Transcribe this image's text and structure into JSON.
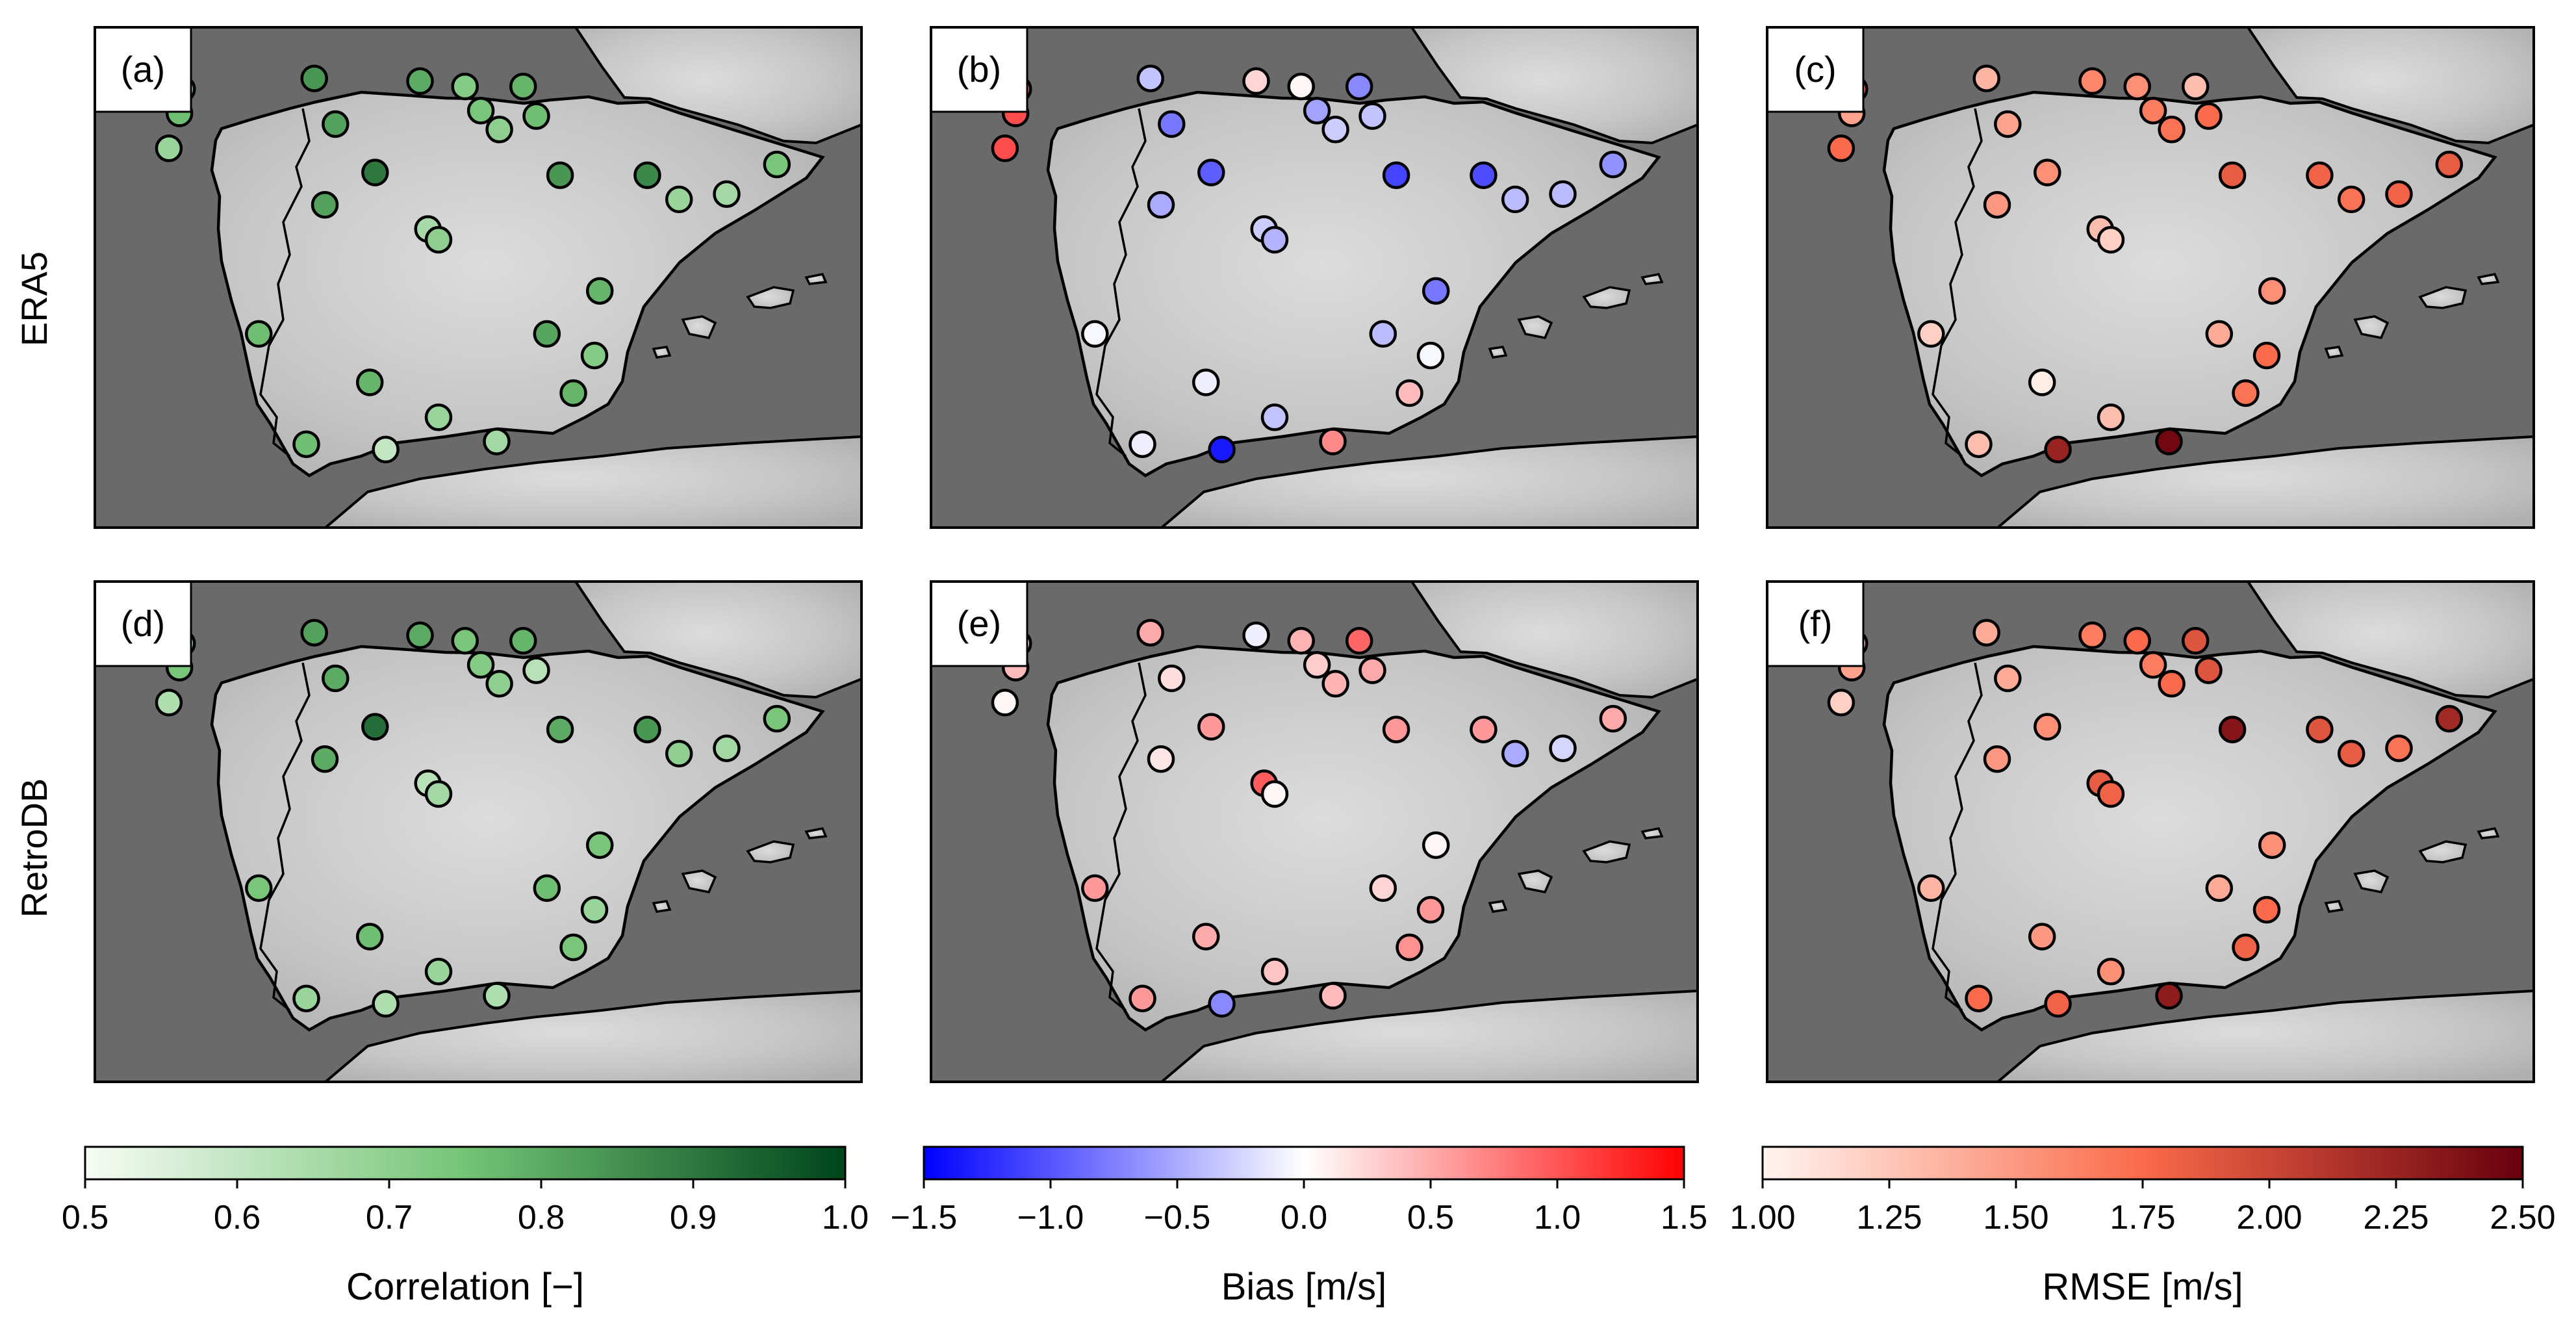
{
  "figure": {
    "row_labels": [
      "ERA5",
      "RetroDB"
    ],
    "panel_labels": [
      "(a)",
      "(b)",
      "(c)",
      "(d)",
      "(e)",
      "(f)"
    ]
  },
  "colors": {
    "sea": "#6a6a6a",
    "land_light": "#d4d4d4",
    "land_dark": "#a8a8a8",
    "coast": "#000000",
    "corr_low": "#f7fcf5",
    "corr_mid": "#74c476",
    "corr_high": "#00441b",
    "bias_low": "#0000ff",
    "bias_mid": "#ffffff",
    "bias_high": "#ff0000",
    "rmse_low": "#fff5f0",
    "rmse_mid": "#fb6a4a",
    "rmse_high": "#67000d"
  },
  "colorbars": [
    {
      "metric": "corr",
      "label": "Correlation [−]",
      "min": 0.5,
      "max": 1.0,
      "ticks": [
        0.5,
        0.6,
        0.7,
        0.8,
        0.9,
        1.0
      ],
      "tick_labels": [
        "0.5",
        "0.6",
        "0.7",
        "0.8",
        "0.9",
        "1.0"
      ]
    },
    {
      "metric": "bias",
      "label": "Bias [m/s]",
      "min": -1.5,
      "max": 1.5,
      "ticks": [
        -1.5,
        -1.0,
        -0.5,
        0.0,
        0.5,
        1.0,
        1.5
      ],
      "tick_labels": [
        "−1.5",
        "−1.0",
        "−0.5",
        "0.0",
        "0.5",
        "1.0",
        "1.5"
      ]
    },
    {
      "metric": "rmse",
      "label": "RMSE [m/s]",
      "min": 1.0,
      "max": 2.5,
      "ticks": [
        1.0,
        1.25,
        1.5,
        1.75,
        2.0,
        2.25,
        2.5
      ],
      "tick_labels": [
        "1.00",
        "1.25",
        "1.50",
        "1.75",
        "2.00",
        "2.25",
        "2.50"
      ]
    }
  ],
  "chart_data": {
    "type": "scatter",
    "title": "",
    "description_axes": "longitude / latitude map of Iberian Peninsula",
    "xlim_lon": [
      -10.0,
      4.5
    ],
    "ylim_lat": [
      35.2,
      44.5
    ],
    "stations": [
      {
        "lon": -8.35,
        "lat": 43.35
      },
      {
        "lon": -8.4,
        "lat": 42.9
      },
      {
        "lon": -8.6,
        "lat": 42.25
      },
      {
        "lon": -5.85,
        "lat": 43.55
      },
      {
        "lon": -3.85,
        "lat": 43.5
      },
      {
        "lon": -3.0,
        "lat": 43.4
      },
      {
        "lon": -1.9,
        "lat": 43.4
      },
      {
        "lon": -2.7,
        "lat": 42.95
      },
      {
        "lon": -2.35,
        "lat": 42.6
      },
      {
        "lon": -1.65,
        "lat": 42.85
      },
      {
        "lon": -5.45,
        "lat": 42.7
      },
      {
        "lon": -4.7,
        "lat": 41.8
      },
      {
        "lon": -5.65,
        "lat": 41.2
      },
      {
        "lon": -3.7,
        "lat": 40.75
      },
      {
        "lon": -3.5,
        "lat": 40.55
      },
      {
        "lon": -1.2,
        "lat": 41.75
      },
      {
        "lon": 0.45,
        "lat": 41.75
      },
      {
        "lon": 1.05,
        "lat": 41.3
      },
      {
        "lon": 1.95,
        "lat": 41.4
      },
      {
        "lon": 2.9,
        "lat": 41.95
      },
      {
        "lon": -0.45,
        "lat": 39.6
      },
      {
        "lon": -1.45,
        "lat": 38.8
      },
      {
        "lon": -0.55,
        "lat": 38.4
      },
      {
        "lon": -0.95,
        "lat": 37.7
      },
      {
        "lon": -6.9,
        "lat": 38.8
      },
      {
        "lon": -4.8,
        "lat": 37.9
      },
      {
        "lon": -3.5,
        "lat": 37.25
      },
      {
        "lon": -2.4,
        "lat": 36.8
      },
      {
        "lon": -6.0,
        "lat": 36.75
      },
      {
        "lon": -4.5,
        "lat": 36.65
      }
    ],
    "series": [
      {
        "name": "(a) ERA5 Correlation",
        "metric": "corr",
        "values": [
          0.72,
          0.76,
          0.68,
          0.84,
          0.8,
          0.72,
          0.78,
          0.74,
          0.7,
          0.76,
          0.82,
          0.9,
          0.82,
          0.65,
          0.7,
          0.84,
          0.87,
          0.68,
          0.66,
          0.74,
          0.78,
          0.81,
          0.72,
          0.78,
          0.76,
          0.78,
          0.68,
          0.66,
          0.76,
          0.6
        ]
      },
      {
        "name": "(b) ERA5 Bias",
        "metric": "bias",
        "values": [
          1.0,
          1.05,
          1.05,
          -0.35,
          0.25,
          0.05,
          -0.7,
          -0.55,
          -0.3,
          -0.35,
          -0.8,
          -0.95,
          -0.5,
          -0.3,
          -0.45,
          -1.1,
          -1.05,
          -0.4,
          -0.4,
          -0.65,
          -0.8,
          -0.4,
          -0.05,
          0.4,
          -0.05,
          -0.1,
          -0.35,
          0.7,
          -0.1,
          -1.35
        ]
      },
      {
        "name": "(c) ERA5 RMSE",
        "metric": "rmse",
        "values": [
          1.7,
          1.45,
          1.75,
          1.35,
          1.6,
          1.55,
          1.3,
          1.65,
          1.7,
          1.75,
          1.45,
          1.55,
          1.5,
          1.3,
          1.2,
          1.85,
          1.8,
          1.7,
          1.8,
          1.85,
          1.55,
          1.4,
          1.75,
          1.7,
          1.2,
          1.05,
          1.3,
          2.45,
          1.3,
          2.25
        ]
      },
      {
        "name": "(d) RetroDB Correlation",
        "metric": "corr",
        "values": [
          0.7,
          0.74,
          0.64,
          0.82,
          0.8,
          0.74,
          0.78,
          0.72,
          0.7,
          0.62,
          0.8,
          0.92,
          0.8,
          0.62,
          0.66,
          0.8,
          0.84,
          0.7,
          0.66,
          0.74,
          0.74,
          0.76,
          0.68,
          0.74,
          0.74,
          0.76,
          0.68,
          0.64,
          0.68,
          0.64
        ]
      },
      {
        "name": "(e) RetroDB Bias",
        "metric": "bias",
        "values": [
          0.3,
          0.4,
          0.05,
          0.5,
          -0.1,
          0.45,
          0.9,
          0.3,
          0.45,
          0.5,
          0.2,
          0.6,
          0.15,
          0.95,
          0.05,
          0.6,
          0.6,
          -0.5,
          -0.25,
          0.5,
          0.05,
          0.25,
          0.6,
          0.65,
          0.6,
          0.5,
          0.35,
          0.4,
          0.6,
          -0.7
        ]
      },
      {
        "name": "(f) RetroDB RMSE",
        "metric": "rmse",
        "values": [
          1.3,
          1.45,
          1.2,
          1.4,
          1.65,
          1.75,
          1.9,
          1.65,
          1.75,
          1.9,
          1.4,
          1.55,
          1.5,
          1.85,
          1.8,
          2.35,
          1.9,
          1.85,
          1.7,
          2.2,
          1.55,
          1.4,
          1.75,
          1.8,
          1.35,
          1.5,
          1.55,
          2.3,
          1.75,
          1.8
        ]
      }
    ]
  }
}
